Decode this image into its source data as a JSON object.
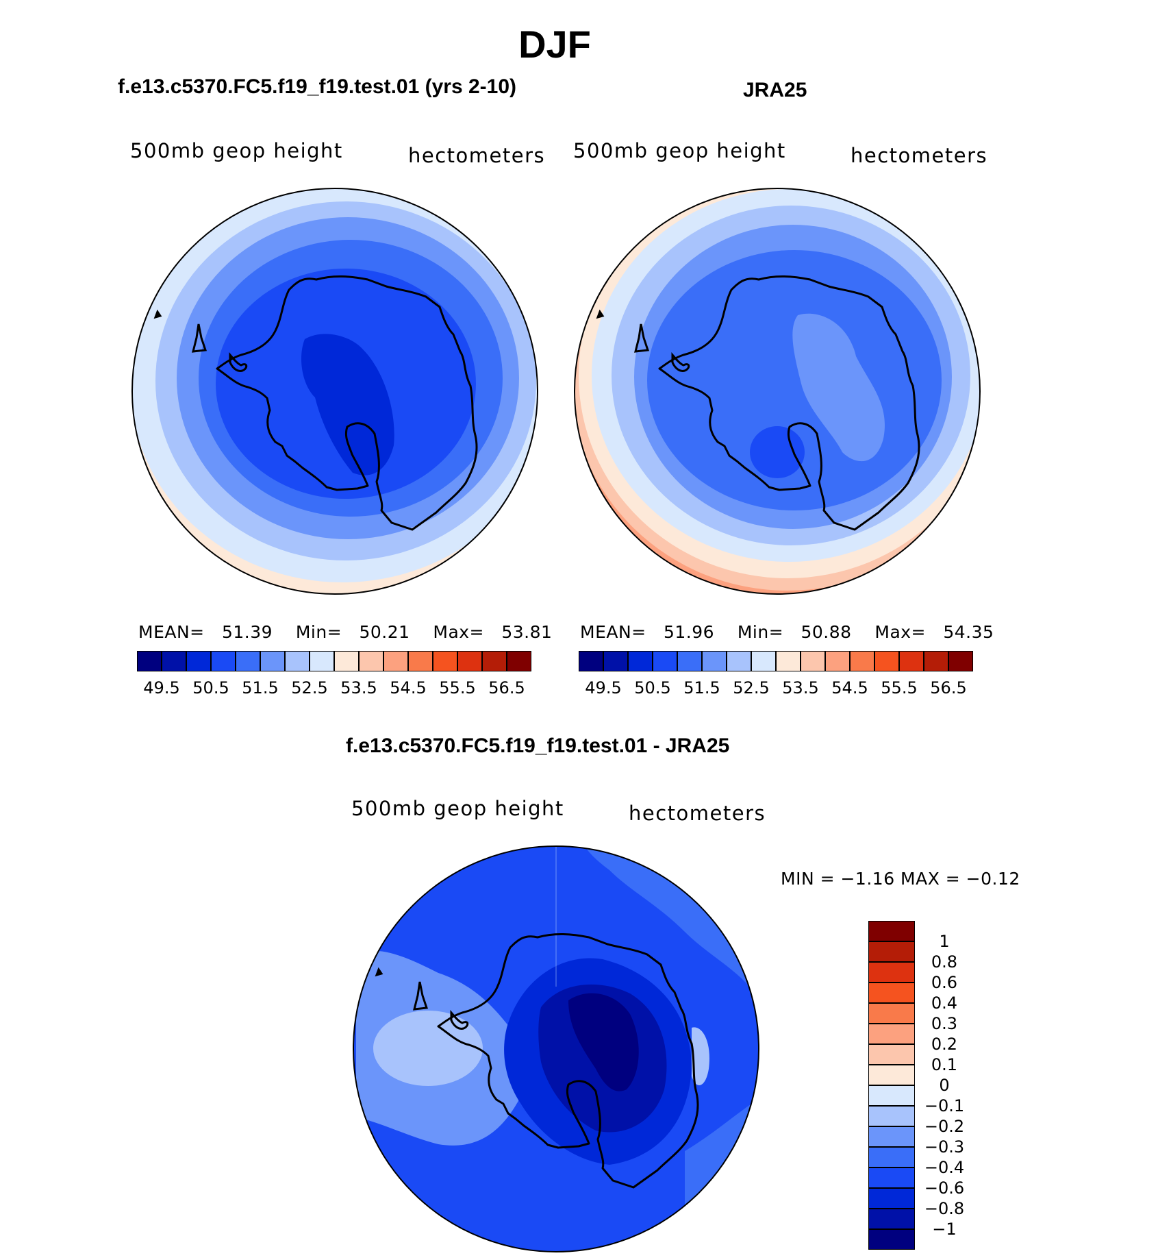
{
  "figure": {
    "title": "DJF"
  },
  "panels": [
    {
      "title": "f.e13.c5370.FC5.f19_f19.test.01 (yrs 2-10)",
      "variable": "500mb  geop  height",
      "units": "hectometers",
      "stats": {
        "mean_label": "MEAN=",
        "mean": "51.39",
        "min_label": "Min=",
        "min": "50.21",
        "max_label": "Max=",
        "max": "53.81"
      }
    },
    {
      "title": "JRA25",
      "variable": "500mb  geop  height",
      "units": "hectometers",
      "stats": {
        "mean_label": "MEAN=",
        "mean": "51.96",
        "min_label": "Min=",
        "min": "50.88",
        "max_label": "Max=",
        "max": "54.35"
      }
    },
    {
      "title": "f.e13.c5370.FC5.f19_f19.test.01 - JRA25",
      "variable": "500mb  geop  height",
      "units": "hectometers",
      "stats_text": "MIN =   −1.16 MAX =   −0.12"
    }
  ],
  "colorbar_field": {
    "colors": [
      "#00007f",
      "#0011a8",
      "#0028d8",
      "#1a4af5",
      "#3a6ef8",
      "#6b95fa",
      "#a8c3fc",
      "#d8e8fd",
      "#fde9d9",
      "#fcc6ad",
      "#fca17f",
      "#f97a4a",
      "#f5531f",
      "#dd3210",
      "#b41d07",
      "#7f0000"
    ],
    "tick_labels": [
      "49.5",
      "50.5",
      "51.5",
      "52.5",
      "53.5",
      "54.5",
      "55.5",
      "56.5"
    ]
  },
  "colorbar_diff": {
    "colors": [
      "#00007f",
      "#0011a8",
      "#0028d8",
      "#1a4af5",
      "#3a6ef8",
      "#6b95fa",
      "#a8c3fc",
      "#d8e8fd",
      "#fde9d9",
      "#fcc6ad",
      "#fca17f",
      "#f97a4a",
      "#f5531f",
      "#dd3210",
      "#b41d07",
      "#7f0000"
    ],
    "tick_labels": [
      "−1",
      "−0.8",
      "−0.6",
      "−0.4",
      "−0.3",
      "−0.2",
      "−0.1",
      "0",
      "0.1",
      "0.2",
      "0.3",
      "0.4",
      "0.6",
      "0.8",
      "1"
    ]
  },
  "map_colors": {
    "c0": "#00007f",
    "c1": "#0011a8",
    "c2": "#0028d8",
    "c3": "#1a4af5",
    "c4": "#3a6ef8",
    "c5": "#6b95fa",
    "c6": "#a8c3fc",
    "c7": "#d8e8fd",
    "c8": "#fde9d9",
    "c9": "#fcc6ad",
    "c10": "#fca17f"
  }
}
